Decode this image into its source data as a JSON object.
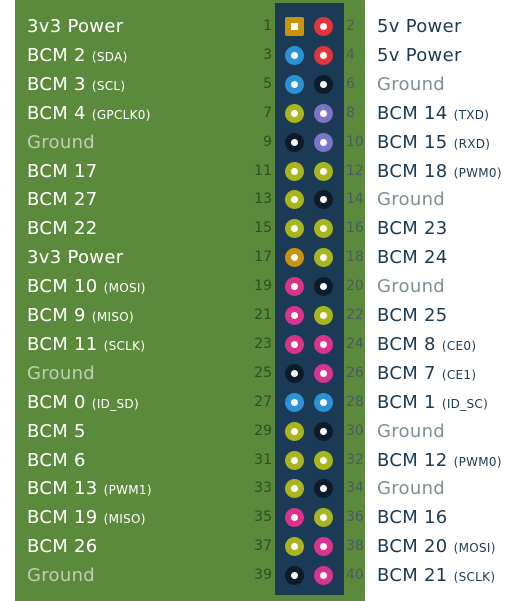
{
  "colors": {
    "panel": "#5b8a3c",
    "header": "#1a3a55",
    "power3v3": "#c9930e",
    "power5v": "#e2353b",
    "i2c": "#2a93d5",
    "ground": "#0c1c2a",
    "gpio": "#a8b51d",
    "uart": "#7c74c9",
    "spi": "#d9338b",
    "eeprom": "#2a93d5"
  },
  "rows": [
    {
      "left": {
        "text": "3v3 Power",
        "sub": "",
        "num": "1",
        "type": "power3v3",
        "shape": "square"
      },
      "right": {
        "text": "5v Power",
        "sub": "",
        "num": "2",
        "type": "power5v"
      }
    },
    {
      "left": {
        "text": "BCM 2",
        "sub": "(SDA)",
        "num": "3",
        "type": "i2c"
      },
      "right": {
        "text": "5v Power",
        "sub": "",
        "num": "4",
        "type": "power5v"
      }
    },
    {
      "left": {
        "text": "BCM 3",
        "sub": "(SCL)",
        "num": "5",
        "type": "i2c"
      },
      "right": {
        "text": "Ground",
        "sub": "",
        "num": "6",
        "type": "ground"
      }
    },
    {
      "left": {
        "text": "BCM 4",
        "sub": "(GPCLK0)",
        "num": "7",
        "type": "gpio"
      },
      "right": {
        "text": "BCM 14",
        "sub": "(TXD)",
        "num": "8",
        "type": "uart"
      }
    },
    {
      "left": {
        "text": "Ground",
        "sub": "",
        "num": "9",
        "type": "ground"
      },
      "right": {
        "text": "BCM 15",
        "sub": "(RXD)",
        "num": "10",
        "type": "uart"
      }
    },
    {
      "left": {
        "text": "BCM 17",
        "sub": "",
        "num": "11",
        "type": "gpio"
      },
      "right": {
        "text": "BCM 18",
        "sub": "(PWM0)",
        "num": "12",
        "type": "gpio"
      }
    },
    {
      "left": {
        "text": "BCM 27",
        "sub": "",
        "num": "13",
        "type": "gpio"
      },
      "right": {
        "text": "Ground",
        "sub": "",
        "num": "14",
        "type": "ground"
      }
    },
    {
      "left": {
        "text": "BCM 22",
        "sub": "",
        "num": "15",
        "type": "gpio"
      },
      "right": {
        "text": "BCM 23",
        "sub": "",
        "num": "16",
        "type": "gpio"
      }
    },
    {
      "left": {
        "text": "3v3 Power",
        "sub": "",
        "num": "17",
        "type": "power3v3"
      },
      "right": {
        "text": "BCM 24",
        "sub": "",
        "num": "18",
        "type": "gpio"
      }
    },
    {
      "left": {
        "text": "BCM 10",
        "sub": "(MOSI)",
        "num": "19",
        "type": "spi"
      },
      "right": {
        "text": "Ground",
        "sub": "",
        "num": "20",
        "type": "ground"
      }
    },
    {
      "left": {
        "text": "BCM 9",
        "sub": "(MISO)",
        "num": "21",
        "type": "spi"
      },
      "right": {
        "text": "BCM 25",
        "sub": "",
        "num": "22",
        "type": "gpio"
      }
    },
    {
      "left": {
        "text": "BCM 11",
        "sub": "(SCLK)",
        "num": "23",
        "type": "spi"
      },
      "right": {
        "text": "BCM 8",
        "sub": "(CE0)",
        "num": "24",
        "type": "spi"
      }
    },
    {
      "left": {
        "text": "Ground",
        "sub": "",
        "num": "25",
        "type": "ground"
      },
      "right": {
        "text": "BCM 7",
        "sub": "(CE1)",
        "num": "26",
        "type": "spi"
      }
    },
    {
      "left": {
        "text": "BCM 0",
        "sub": "(ID_SD)",
        "num": "27",
        "type": "eeprom"
      },
      "right": {
        "text": "BCM 1",
        "sub": "(ID_SC)",
        "num": "28",
        "type": "eeprom"
      }
    },
    {
      "left": {
        "text": "BCM 5",
        "sub": "",
        "num": "29",
        "type": "gpio"
      },
      "right": {
        "text": "Ground",
        "sub": "",
        "num": "30",
        "type": "ground"
      }
    },
    {
      "left": {
        "text": "BCM 6",
        "sub": "",
        "num": "31",
        "type": "gpio"
      },
      "right": {
        "text": "BCM 12",
        "sub": "(PWM0)",
        "num": "32",
        "type": "gpio"
      }
    },
    {
      "left": {
        "text": "BCM 13",
        "sub": "(PWM1)",
        "num": "33",
        "type": "gpio"
      },
      "right": {
        "text": "Ground",
        "sub": "",
        "num": "34",
        "type": "ground"
      }
    },
    {
      "left": {
        "text": "BCM 19",
        "sub": "(MISO)",
        "num": "35",
        "type": "spi"
      },
      "right": {
        "text": "BCM 16",
        "sub": "",
        "num": "36",
        "type": "gpio"
      }
    },
    {
      "left": {
        "text": "BCM 26",
        "sub": "",
        "num": "37",
        "type": "gpio"
      },
      "right": {
        "text": "BCM 20",
        "sub": "(MOSI)",
        "num": "38",
        "type": "spi"
      }
    },
    {
      "left": {
        "text": "Ground",
        "sub": "",
        "num": "39",
        "type": "ground"
      },
      "right": {
        "text": "BCM 21",
        "sub": "(SCLK)",
        "num": "40",
        "type": "spi"
      }
    }
  ]
}
